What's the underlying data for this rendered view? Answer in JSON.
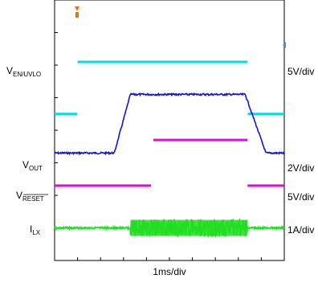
{
  "chart_data": {
    "type": "line",
    "xlabel": "1ms/div",
    "x_divisions": 10,
    "colors": {
      "en_uvlo": "#00dede",
      "vin": "#1414d2",
      "vout": "#ee00ee",
      "vreset": "#ee00ee",
      "ilx": "#22dd22",
      "marker": "#e07a10"
    },
    "channels": [
      {
        "id": "en_uvlo",
        "label_main": "V",
        "label_sub": "EN/UVLO",
        "scale": "5V/div",
        "baseline_div": 4.5,
        "x": [
          0.0,
          0.99,
          1.0,
          8.4,
          8.41,
          10.0
        ],
        "y": [
          0.0,
          0.0,
          1.6,
          1.6,
          0.0,
          0.0
        ]
      },
      {
        "id": "vin",
        "label_main": "",
        "label_sub": "",
        "scale": "",
        "baseline_div": 3.3,
        "x": [
          0.0,
          2.6,
          3.3,
          8.3,
          9.2,
          10.0
        ],
        "y": [
          0.0,
          0.0,
          1.8,
          1.8,
          0.0,
          0.0
        ]
      },
      {
        "id": "vout",
        "label_main": "V",
        "label_sub": "OUT",
        "scale": "2V/div",
        "baseline_div": 1.9,
        "x": [
          4.3,
          8.4
        ],
        "y": [
          0.0,
          0.0
        ]
      },
      {
        "id": "vreset",
        "label_main": "V",
        "label_sub": "RESET",
        "scale": "5V/div",
        "baseline_div": 2.3,
        "x": [
          0.0,
          4.2,
          4.21,
          8.4,
          8.41,
          10.0
        ],
        "y": [
          0.0,
          0.0,
          0.0,
          0.0,
          0.0,
          0.0
        ],
        "gap": [
          4.2,
          8.4
        ],
        "high_level_div": 0.0
      },
      {
        "id": "ilx",
        "label_main": "I",
        "label_sub": "LX",
        "scale": "1A/div",
        "baseline_div": 1.0,
        "switching": [
          3.3,
          8.4
        ]
      }
    ]
  }
}
